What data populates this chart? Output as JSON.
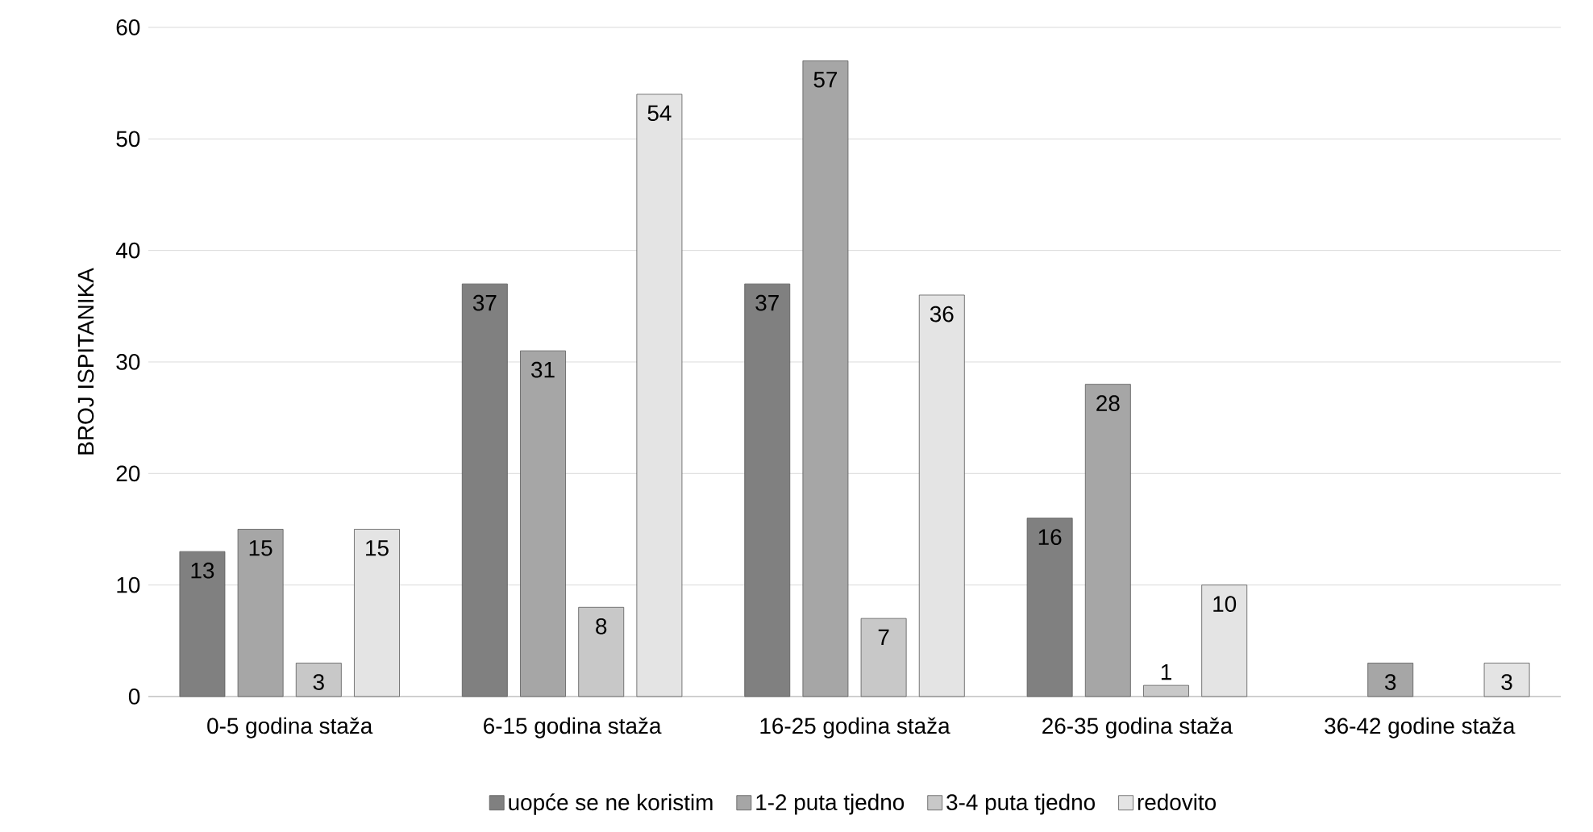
{
  "chart_data": {
    "type": "bar",
    "ylabel": "BROJ ISPITANIKA",
    "categories": [
      "0-5 godina staža",
      "6-15 godina staža",
      "16-25 godina staža",
      "26-35 godina staža",
      "36-42 godine staža"
    ],
    "series": [
      {
        "name": "uopće se ne koristim",
        "color": "#808080",
        "values": [
          13,
          37,
          37,
          16,
          null
        ]
      },
      {
        "name": "1-2 puta tjedno",
        "color": "#a6a6a6",
        "values": [
          15,
          31,
          57,
          28,
          3
        ]
      },
      {
        "name": "3-4 puta tjedno",
        "color": "#c8c8c8",
        "values": [
          3,
          8,
          7,
          1,
          null
        ]
      },
      {
        "name": "redovito",
        "color": "#e4e4e4",
        "values": [
          15,
          54,
          36,
          10,
          3
        ]
      }
    ],
    "ylim": [
      0,
      60
    ],
    "yticks": [
      0,
      10,
      20,
      30,
      40,
      50,
      60
    ],
    "grid": "y",
    "legend": "bottom",
    "data_labels": true
  }
}
